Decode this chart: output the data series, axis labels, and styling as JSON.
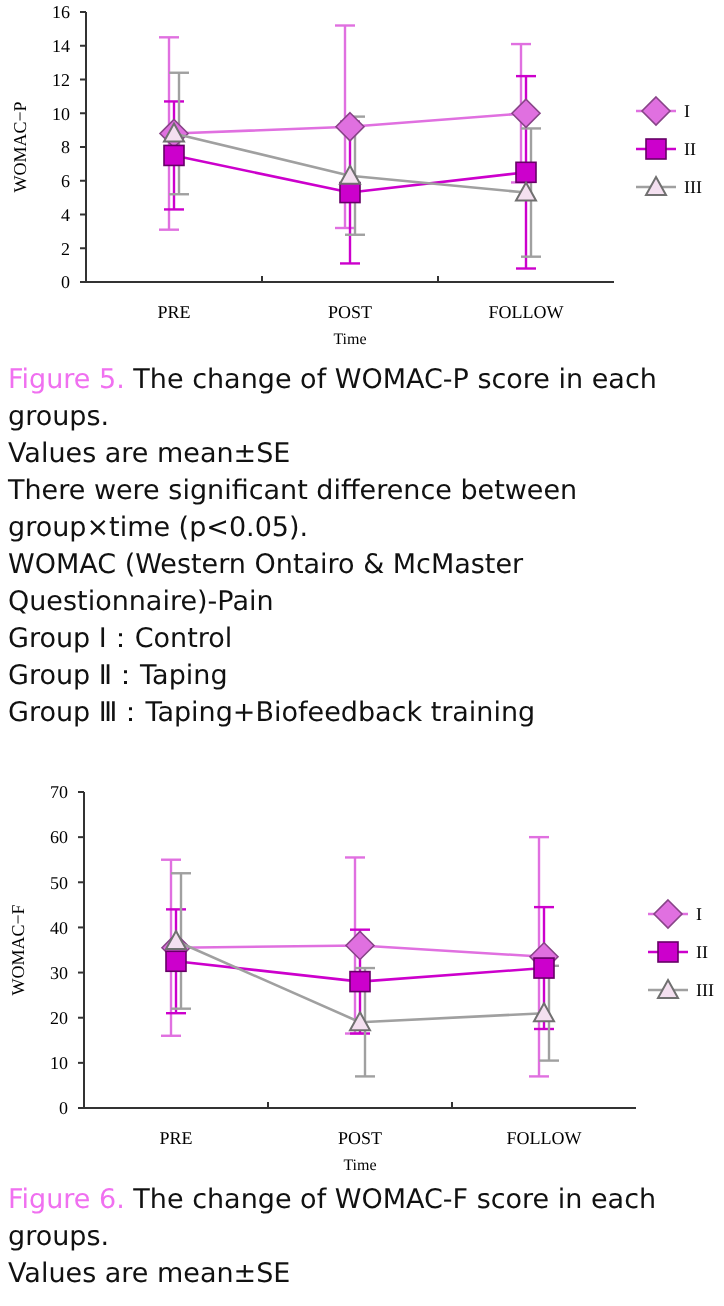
{
  "chart_data": [
    {
      "type": "line",
      "xlabel": "Time",
      "ylabel": "WOMAC−P",
      "categories": [
        "PRE",
        "POST",
        "FOLLOW"
      ],
      "ylim": [
        0,
        16
      ],
      "yticks": [
        0,
        2,
        4,
        6,
        8,
        10,
        12,
        14,
        16
      ],
      "legend": "right",
      "grid": false,
      "series": [
        {
          "name": "I",
          "color": "#e070e0",
          "marker": "diamond",
          "values": [
            8.8,
            9.2,
            10.0
          ],
          "errors": [
            5.7,
            6.0,
            4.1
          ]
        },
        {
          "name": "II",
          "color": "#cc00cc",
          "marker": "square",
          "values": [
            7.5,
            5.3,
            6.5
          ],
          "errors": [
            3.2,
            4.2,
            5.7
          ]
        },
        {
          "name": "III",
          "color": "#a0a0a0",
          "marker": "triangle",
          "values": [
            8.8,
            6.3,
            5.3
          ],
          "errors": [
            3.6,
            3.5,
            3.8
          ]
        }
      ],
      "annotations": [
        "Figure 5. The change of WOMAC-P score in each groups.",
        "Values are mean±SE",
        "There were significant difference between group×time (p<0.05).",
        "WOMAC (Western Ontairo & McMaster Questionnaire)-Pain",
        "Group Ⅰ：Control",
        "Group Ⅱ：Taping",
        "Group Ⅲ：Taping+Biofeedback training"
      ]
    },
    {
      "type": "line",
      "xlabel": "Time",
      "ylabel": "WOMAC−F",
      "categories": [
        "PRE",
        "POST",
        "FOLLOW"
      ],
      "ylim": [
        0,
        70
      ],
      "yticks": [
        0,
        10,
        20,
        30,
        40,
        50,
        60,
        70
      ],
      "legend": "right",
      "grid": false,
      "series": [
        {
          "name": "I",
          "color": "#e070e0",
          "marker": "diamond",
          "values": [
            35.5,
            36,
            33.5
          ],
          "errors": [
            19.5,
            19.5,
            26.5
          ]
        },
        {
          "name": "II",
          "color": "#cc00cc",
          "marker": "square",
          "values": [
            32.5,
            28,
            31
          ],
          "errors": [
            11.5,
            11.5,
            13.5
          ]
        },
        {
          "name": "III",
          "color": "#a0a0a0",
          "marker": "triangle",
          "values": [
            37,
            19,
            21
          ],
          "errors": [
            15,
            12,
            10.5
          ]
        }
      ],
      "annotations": [
        "Figure 6. The change of WOMAC-F score in each groups.",
        "Values are mean±SE"
      ]
    }
  ]
}
